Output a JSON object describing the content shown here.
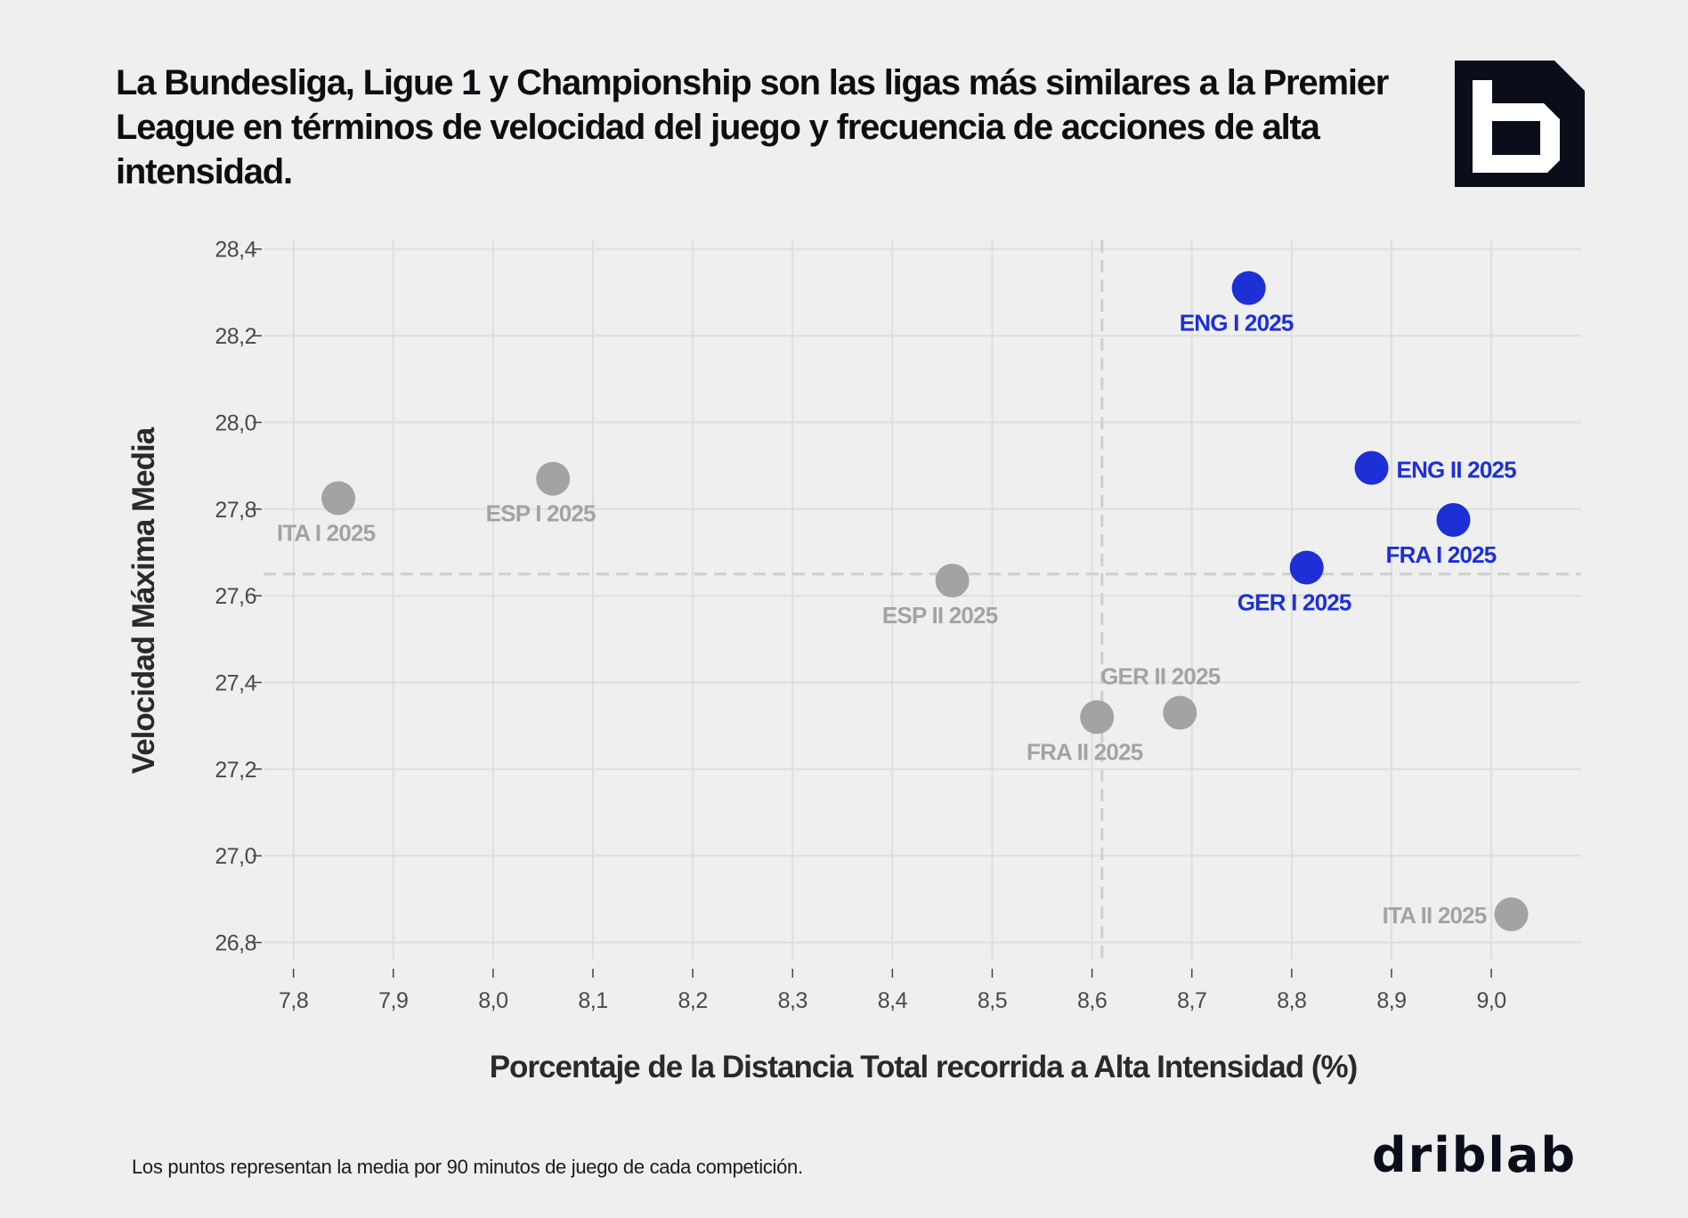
{
  "title": "La Bundesliga, Ligue 1 y Championship son las ligas más similares a la Premier League en términos de velocidad del juego y frecuencia de acciones de alta intensidad.",
  "footnote": "Los puntos representan la media por 90 minutos de juego de cada competición.",
  "brand": {
    "wordmark": "driblab",
    "dark": "#0a0e1a",
    "highlight": "#1c30d6",
    "muted": "#a3a3a3"
  },
  "chart_data": {
    "type": "scatter",
    "xlabel": "Porcentaje de la Distancia Total recorrida a Alta Intensidad (%)",
    "ylabel": "Velocidad Máxima Media",
    "xlim": [
      7.77,
      9.09
    ],
    "ylim": [
      26.76,
      28.42
    ],
    "xticks": [
      "7,8",
      "7,9",
      "8,0",
      "8,1",
      "8,2",
      "8,3",
      "8,4",
      "8,5",
      "8,6",
      "8,7",
      "8,8",
      "8,9",
      "9,0"
    ],
    "yticks": [
      "26,8",
      "27,0",
      "27,2",
      "27,4",
      "27,6",
      "27,8",
      "28,0",
      "28,2",
      "28,4"
    ],
    "reference_lines": {
      "x": 8.61,
      "y": 27.65
    },
    "points": [
      {
        "label": "ENG I 2025",
        "x": 8.757,
        "y": 28.31,
        "highlight": true,
        "label_pos": "below"
      },
      {
        "label": "ENG II 2025",
        "x": 8.88,
        "y": 27.895,
        "highlight": true,
        "label_pos": "right"
      },
      {
        "label": "FRA I 2025",
        "x": 8.962,
        "y": 27.775,
        "highlight": true,
        "label_pos": "below"
      },
      {
        "label": "GER I 2025",
        "x": 8.815,
        "y": 27.665,
        "highlight": true,
        "label_pos": "below"
      },
      {
        "label": "ITA I 2025",
        "x": 7.845,
        "y": 27.825,
        "highlight": false,
        "label_pos": "below"
      },
      {
        "label": "ESP I 2025",
        "x": 8.06,
        "y": 27.87,
        "highlight": false,
        "label_pos": "below"
      },
      {
        "label": "ESP II 2025",
        "x": 8.46,
        "y": 27.635,
        "highlight": false,
        "label_pos": "below"
      },
      {
        "label": "GER II 2025",
        "x": 8.688,
        "y": 27.33,
        "highlight": false,
        "label_pos": "above-left"
      },
      {
        "label": "FRA II 2025",
        "x": 8.605,
        "y": 27.32,
        "highlight": false,
        "label_pos": "below"
      },
      {
        "label": "ITA II 2025",
        "x": 9.02,
        "y": 26.865,
        "highlight": false,
        "label_pos": "left"
      }
    ]
  }
}
